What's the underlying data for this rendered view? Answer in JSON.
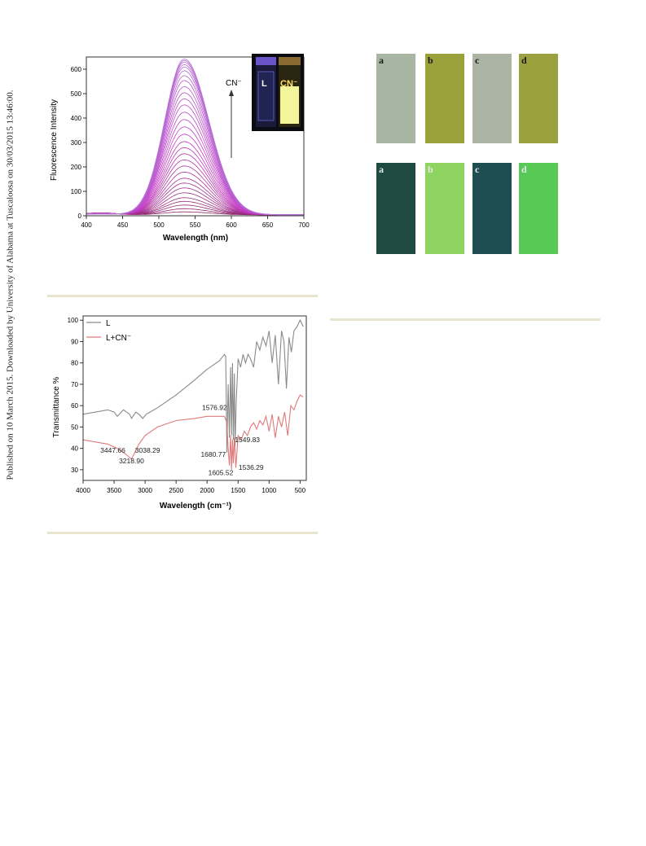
{
  "sidebar_note": "Published on 10 March 2015. Downloaded by University of Alabama at Tuscaloosa on 30/03/2015 13:46:00.",
  "colors": {
    "rule": "#e7e4cf",
    "ir_L": "#8a8a8a",
    "ir_LCN": "#e07a7a",
    "vial_uv": "#4a3aa8",
    "vial_yellow": "#f2f59a"
  },
  "figure_top_right": {
    "row1": {
      "labels": [
        "a",
        "b",
        "c",
        "d"
      ],
      "colors": [
        "#a8b5a2",
        "#9aa13a",
        "#acb5a4",
        "#9ba13f"
      ]
    },
    "row2": {
      "labels": [
        "a",
        "b",
        "c",
        "d"
      ],
      "colors": [
        "#1f4a44",
        "#8fd360",
        "#1e4d52",
        "#58c955"
      ]
    }
  },
  "chart_data": [
    {
      "type": "line",
      "xlabel": "Wavelength (nm)",
      "ylabel": "Fluorescence Intensity",
      "xlim": [
        400,
        700
      ],
      "ylim": [
        0,
        650
      ],
      "xticks": [
        "400",
        "450",
        "500",
        "550",
        "600",
        "650",
        "700"
      ],
      "yticks": [
        "0",
        "100",
        "200",
        "300",
        "400",
        "500",
        "600"
      ],
      "peak_wavelength": 535,
      "peak_values": [
        12,
        25,
        40,
        55,
        70,
        90,
        110,
        130,
        150,
        175,
        200,
        225,
        250,
        275,
        300,
        330,
        360,
        390,
        420,
        450,
        475,
        500,
        525,
        550,
        570,
        590,
        605,
        615,
        625,
        632,
        638
      ],
      "annotation": "CN⁻",
      "grid": false,
      "inset": {
        "left_label": "L",
        "right_label": "CN⁻"
      }
    },
    {
      "type": "line",
      "xlabel": "Wavelength (cm⁻¹)",
      "ylabel": "Transmittance %",
      "xlim": [
        4000,
        400
      ],
      "ylim": [
        25,
        102
      ],
      "xticks": [
        "4000",
        "3500",
        "3000",
        "2500",
        "2000",
        "1500",
        "1000",
        "500"
      ],
      "yticks": [
        "30",
        "40",
        "50",
        "60",
        "70",
        "80",
        "90",
        "100"
      ],
      "legend_position": "top-left",
      "series": [
        {
          "name": "L",
          "x": [
            4000,
            3800,
            3600,
            3500,
            3447.66,
            3350,
            3250,
            3218.9,
            3150,
            3100,
            3038.29,
            2980,
            2800,
            2500,
            2200,
            2000,
            1800,
            1720,
            1700,
            1680.77,
            1660,
            1640,
            1620,
            1605.52,
            1590,
            1576.92,
            1560,
            1549.83,
            1530,
            1500,
            1460,
            1420,
            1380,
            1340,
            1300,
            1250,
            1200,
            1150,
            1100,
            1050,
            1000,
            950,
            900,
            850,
            800,
            760,
            720,
            680,
            640,
            600,
            550,
            500,
            450
          ],
          "y": [
            56,
            57,
            58,
            57,
            55,
            58,
            56,
            54,
            57,
            56,
            54,
            56,
            59,
            65,
            72,
            77,
            81,
            84,
            83,
            38,
            70,
            45,
            78,
            46,
            80,
            44,
            75,
            41,
            62,
            82,
            78,
            84,
            80,
            84,
            82,
            78,
            90,
            86,
            92,
            88,
            95,
            80,
            93,
            70,
            95,
            90,
            68,
            92,
            85,
            95,
            97,
            100,
            97
          ]
        },
        {
          "name": "L+CN⁻",
          "x": [
            4000,
            3800,
            3600,
            3450,
            3300,
            3218.9,
            3100,
            3000,
            2800,
            2500,
            2200,
            2000,
            1800,
            1720,
            1680.77,
            1660,
            1640,
            1620,
            1605.52,
            1590,
            1576.92,
            1560,
            1536.29,
            1500,
            1450,
            1400,
            1350,
            1300,
            1250,
            1200,
            1150,
            1100,
            1050,
            1000,
            950,
            900,
            850,
            800,
            750,
            700,
            650,
            600,
            550,
            500,
            450
          ],
          "y": [
            44,
            43,
            42,
            40,
            37,
            35,
            42,
            46,
            50,
            53,
            54,
            55,
            55,
            55,
            52,
            40,
            32,
            46,
            30,
            44,
            33,
            45,
            31,
            46,
            44,
            48,
            46,
            50,
            52,
            49,
            53,
            51,
            55,
            48,
            56,
            45,
            55,
            50,
            57,
            46,
            60,
            58,
            62,
            65,
            64
          ]
        }
      ],
      "annotations": [
        "3447.66",
        "3038.29",
        "3218.90",
        "1576.92",
        "1549.83",
        "1680.77",
        "1605.52",
        "1536.29"
      ]
    }
  ]
}
